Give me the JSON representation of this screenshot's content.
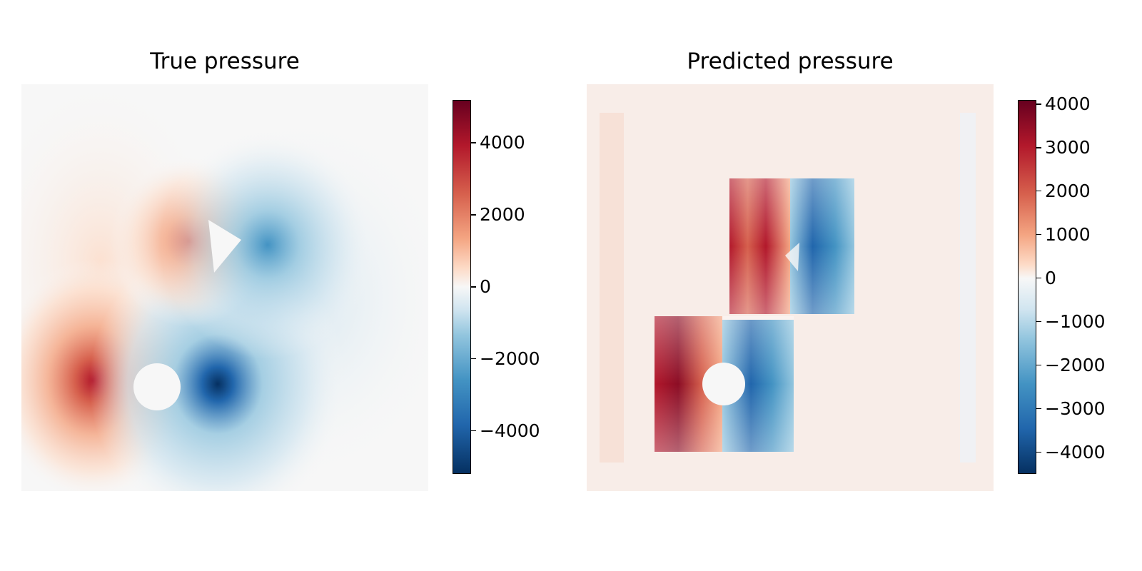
{
  "chart_data": [
    {
      "type": "heatmap",
      "title": "True pressure",
      "colormap": "RdBu_r",
      "colorbar": {
        "vmin": -5200,
        "vmax": 5200,
        "ticks": [
          -4000,
          -2000,
          0,
          2000,
          4000
        ],
        "tick_labels": [
          "−4000",
          "−2000",
          "0",
          "2000",
          "4000"
        ]
      },
      "features": [
        {
          "kind": "circle-obstacle",
          "peak_positive": 5000,
          "peak_negative": -5000
        },
        {
          "kind": "triangle-obstacle",
          "peak_positive": 3500,
          "peak_negative": -3500
        }
      ],
      "background_value": 0
    },
    {
      "type": "heatmap",
      "title": "Predicted pressure",
      "colormap": "RdBu_r",
      "colorbar": {
        "vmin": -4500,
        "vmax": 4100,
        "ticks": [
          -4000,
          -3000,
          -2000,
          -1000,
          0,
          1000,
          2000,
          3000,
          4000
        ],
        "tick_labels": [
          "−4000",
          "−3000",
          "−2000",
          "−1000",
          "0",
          "1000",
          "2000",
          "3000",
          "4000"
        ]
      },
      "features": [
        {
          "kind": "circle-obstacle",
          "peak_positive": 4100,
          "peak_negative": -3800
        },
        {
          "kind": "triangle-obstacle",
          "peak_positive": 3200,
          "peak_negative": -4200
        }
      ],
      "background_value": 200
    }
  ],
  "colors": {
    "dark_red": "#67001f",
    "red": "#b2182b",
    "light_red": "#f4a582",
    "white": "#f7f7f7",
    "light_blue": "#92c5de",
    "blue": "#2166ac",
    "dark_blue": "#053061"
  }
}
